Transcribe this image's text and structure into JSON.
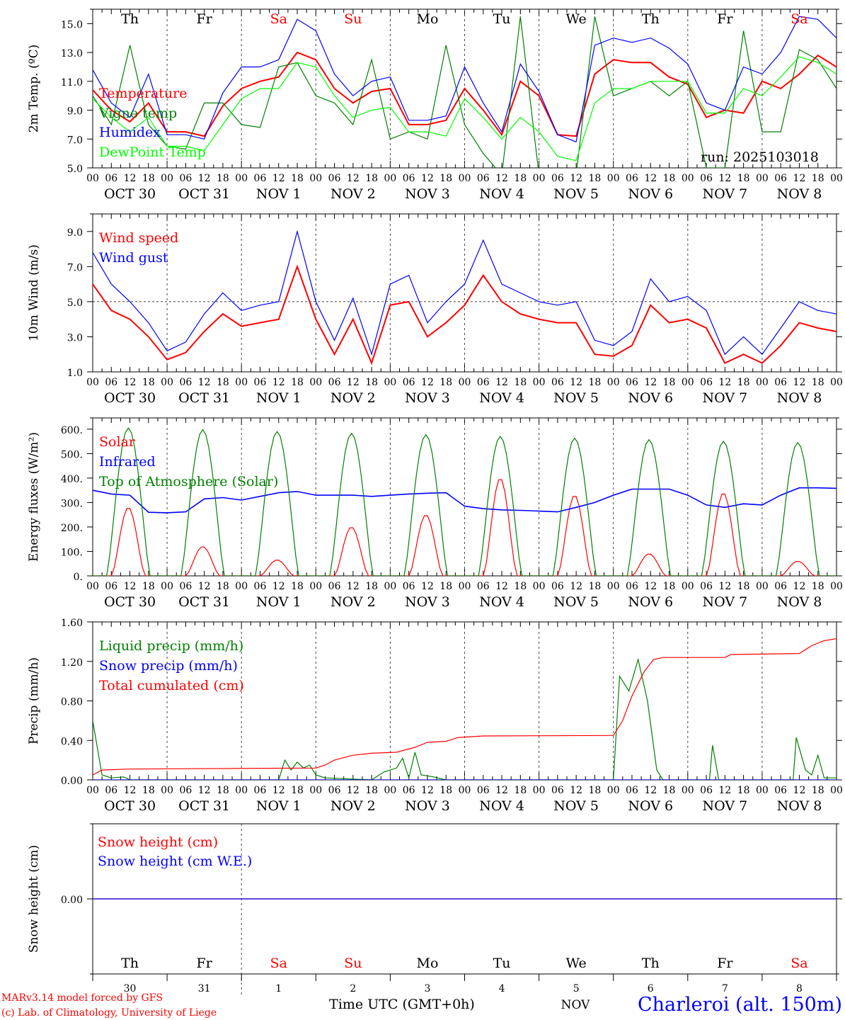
{
  "chart_data": [
    {
      "type": "line",
      "ylabel": "2m Temp. (ºC)",
      "ylim": [
        5,
        16
      ],
      "yticks": [
        5,
        7,
        9,
        11,
        13,
        15
      ],
      "ytick_labels": [
        "5.0",
        "7.0",
        "9.0",
        "11.0",
        "13.0",
        "15.0"
      ],
      "x_step_hours": 6,
      "annotation": "run: 2025103018",
      "series": [
        {
          "name": "Temperature",
          "color": "#ff0000",
          "values": [
            10.4,
            9.0,
            8.2,
            9.5,
            7.5,
            7.5,
            7.2,
            9.3,
            10.5,
            11.0,
            11.3,
            13.0,
            12.5,
            10.5,
            9.5,
            10.3,
            10.5,
            8.0,
            8.0,
            8.3,
            10.5,
            9.0,
            7.3,
            11.0,
            10.0,
            7.3,
            7.2,
            11.5,
            12.5,
            12.3,
            12.3,
            11.3,
            10.8,
            8.5,
            9.0,
            8.8,
            11.0,
            10.5,
            11.5,
            12.8,
            12.0
          ]
        },
        {
          "name": "Vigne temp",
          "color": "#008000",
          "values": [
            10.0,
            8.0,
            13.5,
            8.0,
            6.5,
            6.3,
            9.5,
            9.5,
            8.0,
            7.8,
            12.0,
            12.3,
            10.0,
            9.5,
            8.0,
            12.5,
            7.0,
            7.5,
            7.0,
            13.5,
            8.0,
            6.0,
            4.5,
            15.5,
            4.5,
            4.5,
            4.5,
            15.5,
            10.0,
            10.5,
            11.0,
            10.0,
            11.0,
            5.0,
            5.0,
            14.5,
            7.5,
            7.5,
            13.2,
            12.5,
            10.5
          ]
        },
        {
          "name": "Humidex",
          "color": "#0000ff",
          "values": [
            11.8,
            9.5,
            8.5,
            11.5,
            7.3,
            7.3,
            7.0,
            10.2,
            12.0,
            12.0,
            12.5,
            15.3,
            14.5,
            11.5,
            10.0,
            11.0,
            11.3,
            8.3,
            8.3,
            8.6,
            12.0,
            9.5,
            7.5,
            12.2,
            10.3,
            7.3,
            6.8,
            13.5,
            14.0,
            13.7,
            14.0,
            13.3,
            12.2,
            9.5,
            9.0,
            12.0,
            11.5,
            13.0,
            15.5,
            15.3,
            14.0
          ]
        },
        {
          "name": "DewPoint Temp",
          "color": "#00ff00",
          "values": [
            9.8,
            8.5,
            7.5,
            8.5,
            6.5,
            6.5,
            6.2,
            8.0,
            9.8,
            10.5,
            10.5,
            12.3,
            12.0,
            10.0,
            8.5,
            9.0,
            9.2,
            7.5,
            7.5,
            7.2,
            9.8,
            8.5,
            7.0,
            8.5,
            7.5,
            5.8,
            5.5,
            9.5,
            10.5,
            10.5,
            11.0,
            11.0,
            11.0,
            8.8,
            8.8,
            10.5,
            10.0,
            11.3,
            12.7,
            12.3,
            11.5
          ]
        }
      ]
    },
    {
      "type": "line",
      "ylabel": "10m Wind (m/s)",
      "ylim": [
        1,
        10
      ],
      "yticks": [
        1,
        3,
        5,
        7,
        9
      ],
      "ytick_labels": [
        "1.0",
        "3.0",
        "5.0",
        "7.0",
        "9.0"
      ],
      "reference_line": 5,
      "x_step_hours": 6,
      "series": [
        {
          "name": "Wind speed",
          "color": "#ff0000",
          "values": [
            6.0,
            4.5,
            4.0,
            3.0,
            1.7,
            2.1,
            3.3,
            4.3,
            3.6,
            3.8,
            4.0,
            7.0,
            4.0,
            2.0,
            4.0,
            1.5,
            4.8,
            5.0,
            3.0,
            3.8,
            4.8,
            6.5,
            5.0,
            4.3,
            4.0,
            3.8,
            3.8,
            2.0,
            1.9,
            2.5,
            4.8,
            3.8,
            4.0,
            3.5,
            1.5,
            2.0,
            1.5,
            2.5,
            3.8,
            3.5,
            3.3
          ]
        },
        {
          "name": "Wind gust",
          "color": "#0000ff",
          "values": [
            7.8,
            6.0,
            5.0,
            3.8,
            2.2,
            2.7,
            4.3,
            5.5,
            4.5,
            4.8,
            5.0,
            9.0,
            5.0,
            2.8,
            5.2,
            2.0,
            6.0,
            6.5,
            3.8,
            5.0,
            6.0,
            8.5,
            6.0,
            5.5,
            5.0,
            4.8,
            5.0,
            2.8,
            2.5,
            3.3,
            6.3,
            5.0,
            5.3,
            4.5,
            2.0,
            3.0,
            2.0,
            3.5,
            5.0,
            4.5,
            4.3
          ]
        }
      ]
    },
    {
      "type": "line",
      "ylabel": "Energy fluxes (W/m²)",
      "ylim": [
        0,
        646
      ],
      "yticks": [
        0,
        100,
        200,
        300,
        400,
        500,
        600
      ],
      "ytick_labels": [
        "0.",
        "100.",
        "200.",
        "300.",
        "400.",
        "500.",
        "600."
      ],
      "series": [
        {
          "name": "Solar",
          "color": "#ff0000",
          "daily_peaks": [
            280,
            120,
            65,
            200,
            250,
            400,
            330,
            90,
            340,
            60
          ]
        },
        {
          "name": "Infrared",
          "color": "#0000ff",
          "x_step_hours": 6,
          "values": [
            350,
            335,
            330,
            260,
            258,
            262,
            315,
            320,
            310,
            325,
            340,
            345,
            330,
            330,
            330,
            325,
            330,
            335,
            338,
            340,
            285,
            275,
            270,
            268,
            265,
            262,
            280,
            300,
            330,
            355,
            355,
            355,
            330,
            290,
            280,
            295,
            290,
            330,
            360,
            360,
            358
          ]
        },
        {
          "name": "Top of Atmosphere (Solar)",
          "color": "#008000",
          "daily_peaks": [
            605,
            598,
            590,
            583,
            577,
            570,
            563,
            557,
            550,
            545
          ]
        }
      ]
    },
    {
      "type": "line",
      "ylabel": "Precip (mm/h)",
      "ylim": [
        0,
        1.6
      ],
      "yticks": [
        0,
        0.4,
        0.8,
        1.2,
        1.6
      ],
      "ytick_labels": [
        "0.00",
        "0.40",
        "0.80",
        "1.20",
        "1.60"
      ],
      "series": [
        {
          "name": "Liquid precip (mm/h)",
          "color": "#008000",
          "points": [
            [
              0,
              0.6
            ],
            [
              3,
              0.05
            ],
            [
              6,
              0.02
            ],
            [
              10,
              0.03
            ],
            [
              12,
              0
            ],
            [
              60,
              0
            ],
            [
              62,
              0.2
            ],
            [
              64,
              0.1
            ],
            [
              66,
              0.18
            ],
            [
              68,
              0.12
            ],
            [
              70,
              0.15
            ],
            [
              72,
              0.05
            ],
            [
              75,
              0.02
            ],
            [
              90,
              0
            ],
            [
              94,
              0.08
            ],
            [
              98,
              0.12
            ],
            [
              100,
              0.22
            ],
            [
              102,
              0.02
            ],
            [
              104,
              0.28
            ],
            [
              106,
              0.05
            ],
            [
              110,
              0.03
            ],
            [
              114,
              0
            ],
            [
              168,
              0
            ],
            [
              170,
              1.05
            ],
            [
              173,
              0.9
            ],
            [
              176,
              1.22
            ],
            [
              179,
              0.8
            ],
            [
              182,
              0.1
            ],
            [
              184,
              0
            ],
            [
              199,
              0
            ],
            [
              200,
              0.35
            ],
            [
              202,
              0
            ],
            [
              226,
              0
            ],
            [
              227,
              0.43
            ],
            [
              230,
              0.1
            ],
            [
              232,
              0.05
            ],
            [
              234,
              0.25
            ],
            [
              236,
              0.02
            ],
            [
              240,
              0.02
            ]
          ]
        },
        {
          "name": "Snow precip (mm/h)",
          "color": "#0000ff",
          "points": [
            [
              0,
              0
            ],
            [
              240,
              0
            ]
          ]
        },
        {
          "name": "Total cumulated (cm)",
          "color": "#ff0000",
          "points": [
            [
              0,
              0.05
            ],
            [
              3,
              0.1
            ],
            [
              12,
              0.11
            ],
            [
              72,
              0.12
            ],
            [
              75,
              0.15
            ],
            [
              78,
              0.2
            ],
            [
              84,
              0.25
            ],
            [
              90,
              0.27
            ],
            [
              98,
              0.28
            ],
            [
              104,
              0.33
            ],
            [
              108,
              0.38
            ],
            [
              114,
              0.39
            ],
            [
              118,
              0.43
            ],
            [
              126,
              0.445
            ],
            [
              168,
              0.45
            ],
            [
              171,
              0.6
            ],
            [
              174,
              0.85
            ],
            [
              178,
              1.1
            ],
            [
              181,
              1.22
            ],
            [
              184,
              1.24
            ],
            [
              204,
              1.24
            ],
            [
              206,
              1.27
            ],
            [
              228,
              1.28
            ],
            [
              232,
              1.36
            ],
            [
              236,
              1.41
            ],
            [
              240,
              1.43
            ]
          ]
        }
      ]
    },
    {
      "type": "line",
      "ylabel": "Snow height (cm)",
      "ylim": [
        -1,
        1
      ],
      "yticks": [
        0
      ],
      "ytick_labels": [
        "0.00"
      ],
      "series": [
        {
          "name": "Snow height (cm)",
          "color": "#ff0000",
          "points": [
            [
              0,
              0
            ],
            [
              240,
              0
            ]
          ]
        },
        {
          "name": "Snow height (cm W.E.)",
          "color": "#0000ff",
          "points": [
            [
              0,
              0
            ],
            [
              240,
              0
            ]
          ]
        }
      ]
    }
  ],
  "x_axis": {
    "hour_labels": [
      "00",
      "06",
      "12",
      "18"
    ],
    "last_hour_label": "00",
    "dates": [
      "OCT  30",
      "OCT  31",
      "NOV   1",
      "NOV   2",
      "NOV   3",
      "NOV   4",
      "NOV   5",
      "NOV   6",
      "NOV   7",
      "NOV   8"
    ],
    "day_numbers": [
      "30",
      "31",
      "1",
      "2",
      "3",
      "4",
      "5",
      "6",
      "7",
      "8"
    ],
    "weekdays": [
      "Th",
      "Fr",
      "Sa",
      "Su",
      "Mo",
      "Tu",
      "We",
      "Th",
      "Fr",
      "Sa"
    ],
    "weekend": [
      false,
      false,
      true,
      true,
      false,
      false,
      false,
      false,
      false,
      true
    ],
    "title": "Time UTC (GMT+0h)",
    "month": "NOV"
  },
  "footer": {
    "model": "MARv3.14 model forced by GFS",
    "credit": "(c) Lab. of Climatology, University of Liege",
    "location": "Charleroi (alt. 150m)"
  }
}
